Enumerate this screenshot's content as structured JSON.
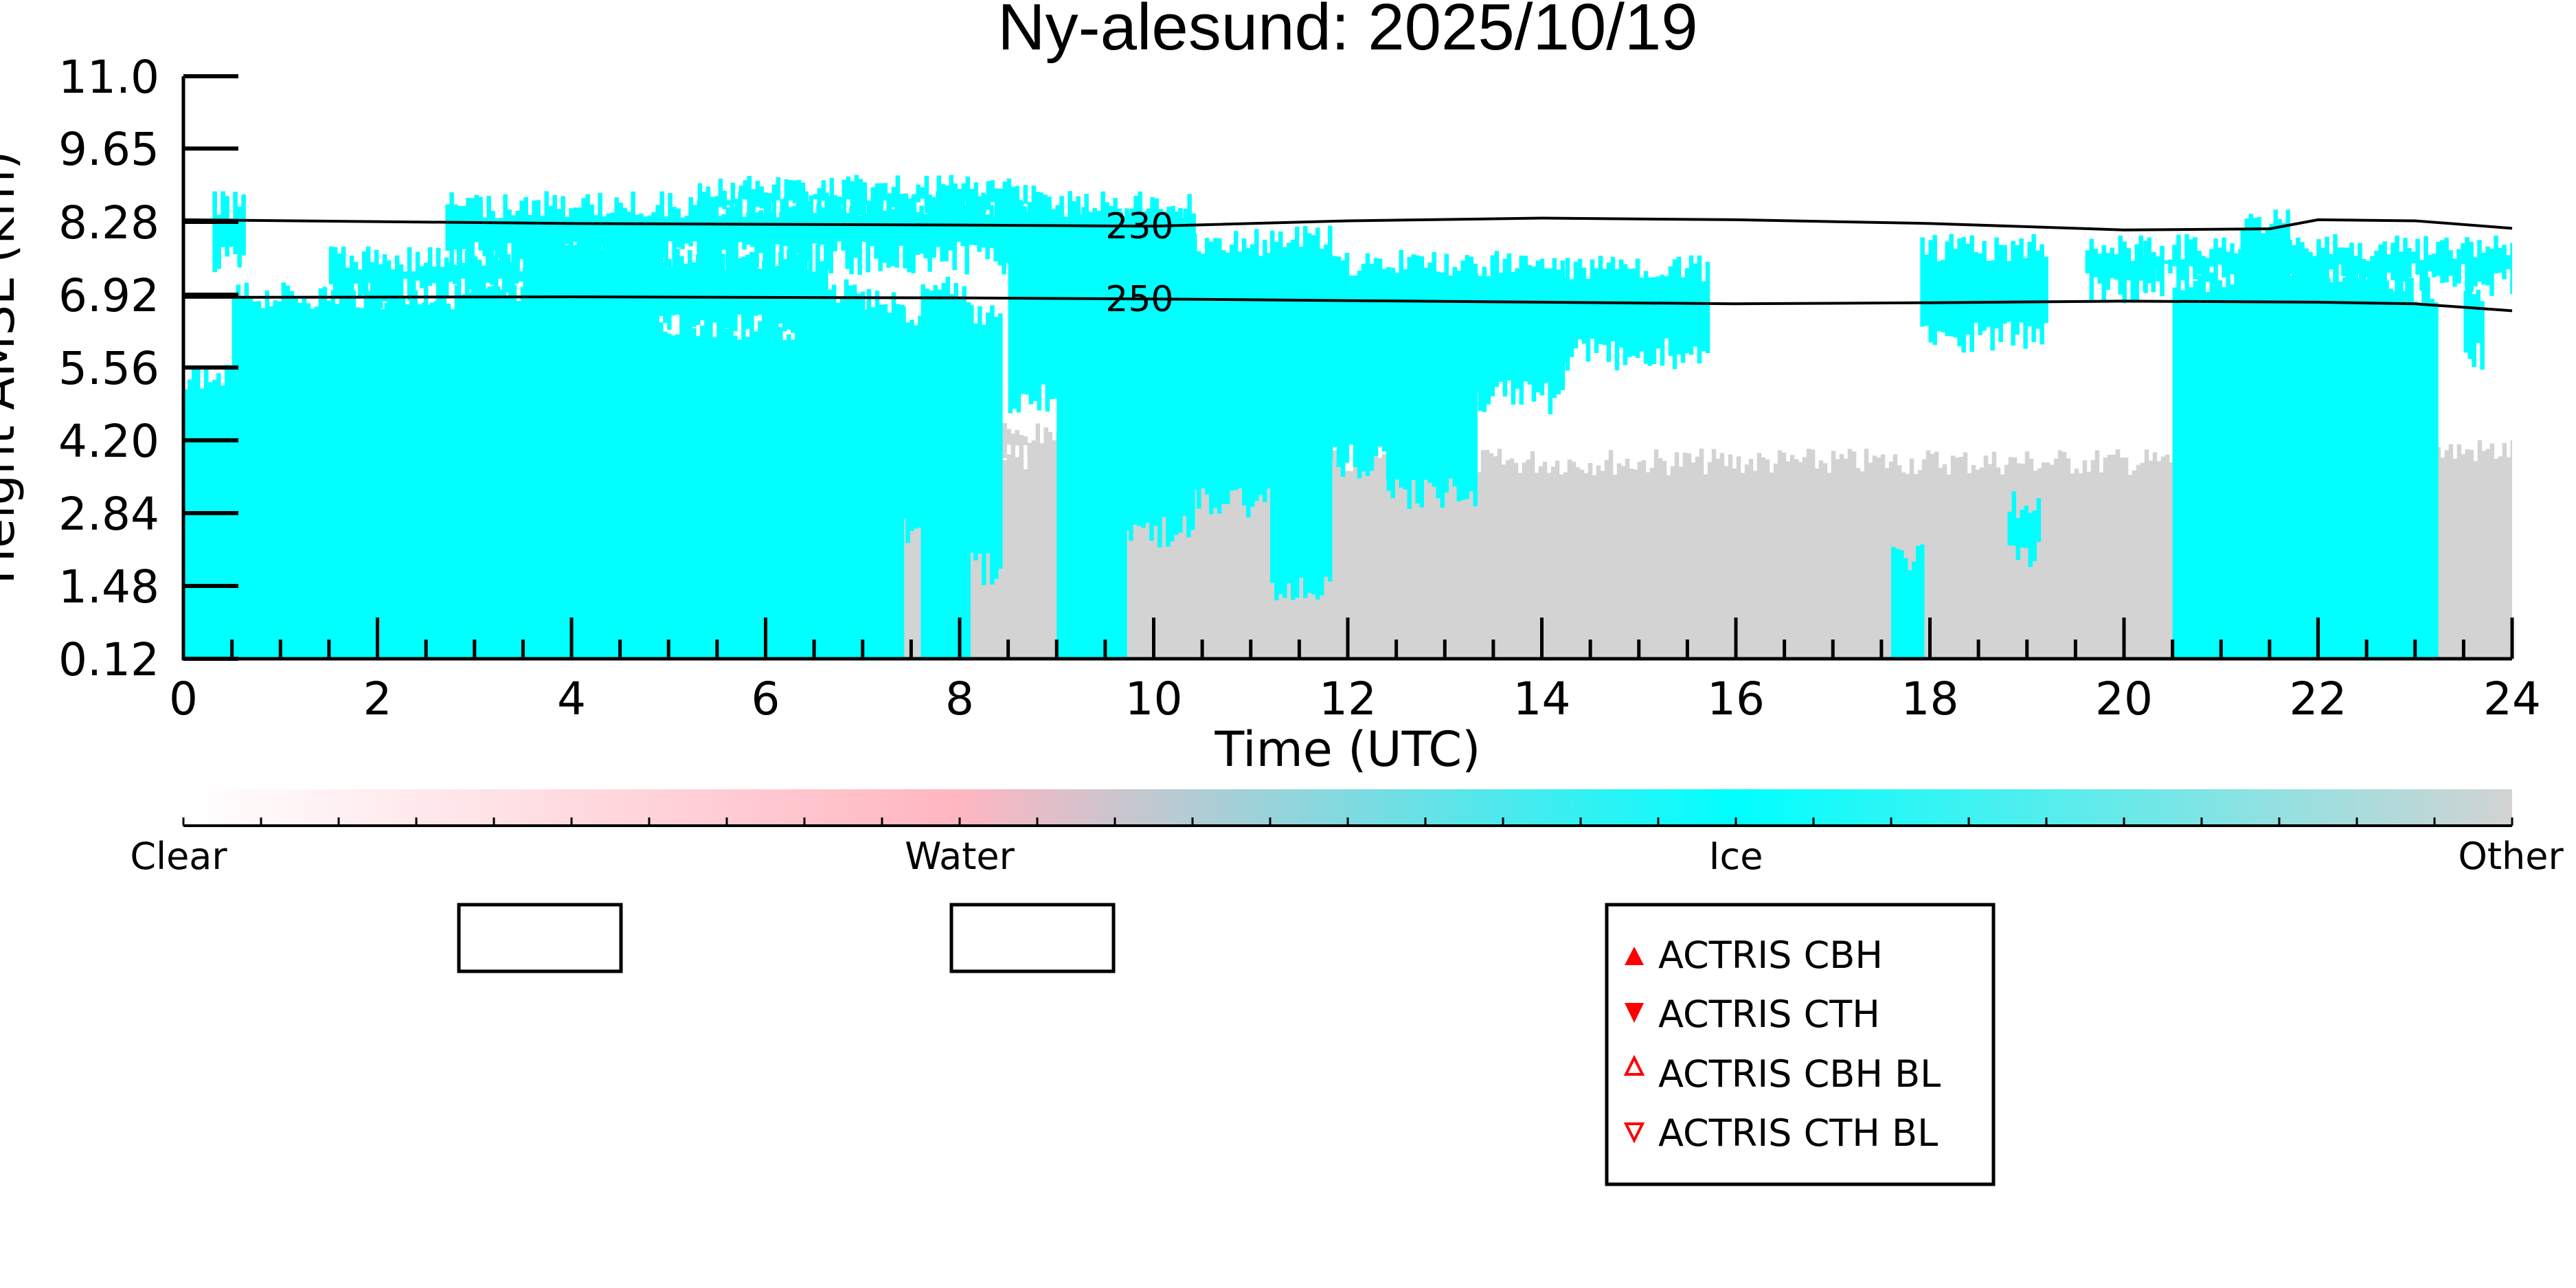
{
  "chart_data": {
    "type": "heatmap",
    "title": "Ny-alesund: 2025/10/19",
    "xlabel": "Time (UTC)",
    "ylabel": "Height AMSL (km)",
    "xlim": [
      0,
      24
    ],
    "ylim": [
      0.12,
      11.0
    ],
    "xticks": [
      "0",
      "2",
      "4",
      "6",
      "8",
      "10",
      "12",
      "14",
      "16",
      "18",
      "20",
      "22",
      "24"
    ],
    "yticks": [
      "0.12",
      "1.48",
      "2.84",
      "4.20",
      "5.56",
      "6.92",
      "8.28",
      "9.65",
      "11.0"
    ],
    "colors": {
      "clear": "#ffffff",
      "water": "#ffb6c1",
      "ice": "#00ffff",
      "other": "#d3d3d3"
    },
    "colorbar": {
      "labels": [
        "Clear",
        "Water",
        "Ice",
        "Other"
      ]
    },
    "regions": [
      {
        "cls": "other",
        "x": [
          7.0,
          20.5
        ],
        "y": [
          0.12,
          3.8
        ]
      },
      {
        "cls": "other",
        "x": [
          20.5,
          24
        ],
        "y": [
          0.12,
          4.0
        ]
      },
      {
        "cls": "other",
        "x": [
          8.4,
          9.3
        ],
        "y": [
          3.8,
          4.3
        ]
      },
      {
        "cls": "ice",
        "x": [
          0,
          0.5
        ],
        "y": [
          0.12,
          5.4
        ]
      },
      {
        "cls": "ice",
        "x": [
          0.3,
          0.6
        ],
        "y": [
          7.5,
          8.6
        ]
      },
      {
        "cls": "ice",
        "x": [
          0.5,
          3.5
        ],
        "y": [
          0.12,
          6.9
        ]
      },
      {
        "cls": "ice",
        "x": [
          1.5,
          3.5
        ],
        "y": [
          6.9,
          7.6
        ]
      },
      {
        "cls": "ice",
        "x": [
          3.5,
          4.9
        ],
        "y": [
          0.12,
          8.0
        ]
      },
      {
        "cls": "ice",
        "x": [
          4.9,
          6.3
        ],
        "y": [
          0.12,
          6.3
        ]
      },
      {
        "cls": "ice",
        "x": [
          6.3,
          7.0
        ],
        "y": [
          0.12,
          7.0
        ]
      },
      {
        "cls": "ice",
        "x": [
          2.7,
          10.4
        ],
        "y": [
          7.6,
          8.6
        ]
      },
      {
        "cls": "ice",
        "x": [
          5.3,
          8.8
        ],
        "y": [
          8.4,
          8.9
        ]
      },
      {
        "cls": "ice",
        "x": [
          4.9,
          6.6
        ],
        "y": [
          6.3,
          7.6
        ]
      },
      {
        "cls": "ice",
        "x": [
          7.0,
          7.4
        ],
        "y": [
          0.12,
          6.8
        ]
      },
      {
        "cls": "ice",
        "x": [
          7.4,
          7.8
        ],
        "y": [
          2.5,
          6.5
        ]
      },
      {
        "cls": "ice",
        "x": [
          7.6,
          8.1
        ],
        "y": [
          0.12,
          7.0
        ]
      },
      {
        "cls": "ice",
        "x": [
          8.1,
          8.4
        ],
        "y": [
          1.8,
          6.5
        ]
      },
      {
        "cls": "ice",
        "x": [
          8.5,
          9.0
        ],
        "y": [
          5.0,
          8.3
        ]
      },
      {
        "cls": "ice",
        "x": [
          9.0,
          9.7
        ],
        "y": [
          0.12,
          8.3
        ]
      },
      {
        "cls": "ice",
        "x": [
          9.7,
          10.4
        ],
        "y": [
          2.5,
          8.3
        ]
      },
      {
        "cls": "ice",
        "x": [
          10.4,
          11.2
        ],
        "y": [
          3.0,
          7.9
        ]
      },
      {
        "cls": "ice",
        "x": [
          11.2,
          11.8
        ],
        "y": [
          1.5,
          8.0
        ]
      },
      {
        "cls": "ice",
        "x": [
          11.8,
          12.4
        ],
        "y": [
          3.8,
          7.5
        ]
      },
      {
        "cls": "ice",
        "x": [
          12.4,
          13.3
        ],
        "y": [
          3.2,
          7.5
        ]
      },
      {
        "cls": "ice",
        "x": [
          13.3,
          14.2
        ],
        "y": [
          5.0,
          7.5
        ]
      },
      {
        "cls": "ice",
        "x": [
          14.2,
          15.7
        ],
        "y": [
          5.8,
          7.4
        ]
      },
      {
        "cls": "ice",
        "x": [
          17.6,
          17.9
        ],
        "y": [
          0.12,
          2.0
        ]
      },
      {
        "cls": "ice",
        "x": [
          17.9,
          19.2
        ],
        "y": [
          6.1,
          7.8
        ]
      },
      {
        "cls": "ice",
        "x": [
          18.8,
          19.1
        ],
        "y": [
          2.1,
          3.0
        ]
      },
      {
        "cls": "ice",
        "x": [
          19.6,
          20.3
        ],
        "y": [
          7.0,
          7.8
        ]
      },
      {
        "cls": "ice",
        "x": [
          20.5,
          21.2
        ],
        "y": [
          0.12,
          7.2
        ]
      },
      {
        "cls": "ice",
        "x": [
          21.2,
          21.7
        ],
        "y": [
          0.12,
          8.3
        ]
      },
      {
        "cls": "ice",
        "x": [
          21.7,
          22.6
        ],
        "y": [
          0.12,
          7.4
        ]
      },
      {
        "cls": "ice",
        "x": [
          22.6,
          23.2
        ],
        "y": [
          0.12,
          7.0
        ]
      },
      {
        "cls": "ice",
        "x": [
          20.2,
          24
        ],
        "y": [
          7.2,
          7.8
        ]
      },
      {
        "cls": "ice",
        "x": [
          23.5,
          23.7
        ],
        "y": [
          5.8,
          6.8
        ]
      }
    ],
    "contours": [
      {
        "label": "230",
        "label_x": 9.5,
        "x": [
          0,
          4,
          8,
          10,
          12,
          14,
          16,
          18,
          20,
          21.5,
          22,
          23,
          24
        ],
        "y": [
          8.32,
          8.25,
          8.22,
          8.2,
          8.3,
          8.35,
          8.32,
          8.25,
          8.13,
          8.15,
          8.32,
          8.3,
          8.16
        ]
      },
      {
        "label": "250",
        "label_x": 9.5,
        "x": [
          0,
          4,
          8,
          10,
          12,
          14,
          16,
          18,
          20,
          22,
          23,
          24
        ],
        "y": [
          6.87,
          6.88,
          6.86,
          6.84,
          6.81,
          6.78,
          6.75,
          6.77,
          6.8,
          6.78,
          6.75,
          6.62
        ]
      }
    ],
    "legend": {
      "placement": "bottom-right",
      "entries": [
        {
          "label": "ACTRIS CBH",
          "marker": "triangle-up-filled"
        },
        {
          "label": "ACTRIS CTH",
          "marker": "triangle-down-filled"
        },
        {
          "label": "ACTRIS CBH BL",
          "marker": "triangle-up-open"
        },
        {
          "label": "ACTRIS CTH BL",
          "marker": "triangle-down-open"
        }
      ],
      "color": "#ff0000"
    }
  }
}
